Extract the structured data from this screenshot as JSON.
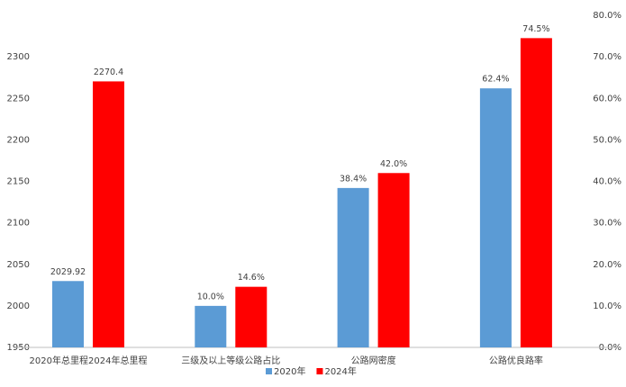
{
  "chart_data": {
    "type": "bar",
    "categories": [
      "2020年总里程2024年总里程",
      "三级及以上等级公路占比",
      "公路网密度",
      "公路优良路率"
    ],
    "point_axes": [
      "y",
      "y2",
      "y2",
      "y2"
    ],
    "series": [
      {
        "name": "2020年",
        "color": "#5b9bd5",
        "values": [
          2029.92,
          10.0,
          38.4,
          62.4
        ],
        "value_labels": [
          "2029.92",
          "10.0%",
          "38.4%",
          "62.4%"
        ]
      },
      {
        "name": "2024年",
        "color": "#ff0000",
        "values": [
          2270.4,
          14.6,
          42.0,
          74.5
        ],
        "value_labels": [
          "2270.4",
          "14.6%",
          "42.0%",
          "74.5%"
        ]
      }
    ],
    "ylim": [
      1950,
      2350
    ],
    "yticks": [
      1950,
      2000,
      2050,
      2100,
      2150,
      2200,
      2250,
      2300
    ],
    "y2lim": [
      0,
      80
    ],
    "y2ticks": [
      {
        "value": 0,
        "label": "0.0%"
      },
      {
        "value": 10,
        "label": "10.0%"
      },
      {
        "value": 20,
        "label": "20.0%"
      },
      {
        "value": 30,
        "label": "30.0%"
      },
      {
        "value": 40,
        "label": "40.0%"
      },
      {
        "value": 50,
        "label": "50.0%"
      },
      {
        "value": 60,
        "label": "60.0%"
      },
      {
        "value": 70,
        "label": "70.0%"
      },
      {
        "value": 80,
        "label": "80.0%"
      }
    ],
    "legend": "bottom"
  }
}
